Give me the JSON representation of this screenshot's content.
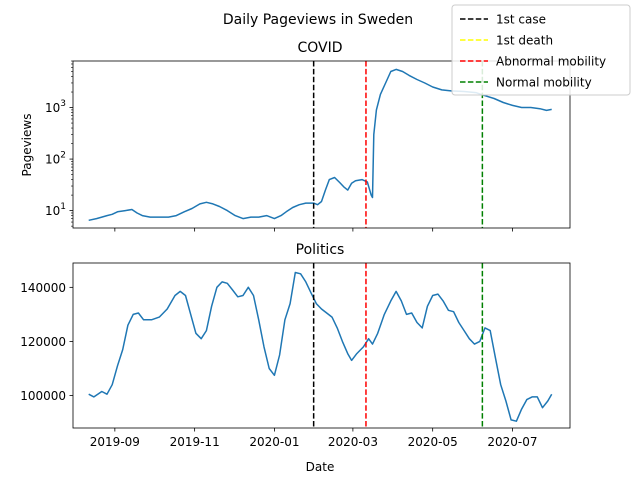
{
  "figure": {
    "title": "Daily Pageviews in Sweden",
    "xlabel": "Date"
  },
  "legend": {
    "placement": "top-right",
    "entries": [
      {
        "label": "1st case",
        "color": "#000000"
      },
      {
        "label": "1st death",
        "color": "#ffff00"
      },
      {
        "label": "Abnormal mobility",
        "color": "#ff0000"
      },
      {
        "label": "Normal mobility",
        "color": "#008000"
      }
    ]
  },
  "chart_data": [
    {
      "type": "line",
      "title": "COVID",
      "xlabel": "",
      "ylabel": "Pageviews",
      "yscale": "log",
      "xlim": [
        "2019-07-31",
        "2020-08-14"
      ],
      "ylim": [
        4.6,
        8000
      ],
      "x_ticks": [
        "2019-09-01",
        "2019-11-01",
        "2020-01-01",
        "2020-03-01",
        "2020-05-01",
        "2020-07-01"
      ],
      "y_ticks": [
        {
          "value": 10,
          "label": "10^1"
        },
        {
          "value": 100,
          "label": "10^2"
        },
        {
          "value": 1000,
          "label": "10^3"
        }
      ],
      "line_color": "#1f77b4",
      "events": [
        {
          "date": "2020-01-31",
          "color": "#000000"
        },
        {
          "date": "2020-03-11",
          "color": "#ff0000"
        },
        {
          "date": "2020-06-08",
          "color": "#008000"
        }
      ],
      "series": [
        {
          "points": [
            [
              "2019-08-12",
              6.5
            ],
            [
              "2019-08-18",
              7
            ],
            [
              "2019-08-22",
              7.5
            ],
            [
              "2019-08-26",
              8
            ],
            [
              "2019-08-30",
              8.5
            ],
            [
              "2019-09-03",
              9.5
            ],
            [
              "2019-09-09",
              10
            ],
            [
              "2019-09-14",
              10.5
            ],
            [
              "2019-09-18",
              9
            ],
            [
              "2019-09-22",
              8
            ],
            [
              "2019-09-28",
              7.5
            ],
            [
              "2019-10-05",
              7.5
            ],
            [
              "2019-10-12",
              7.5
            ],
            [
              "2019-10-18",
              8
            ],
            [
              "2019-10-24",
              9.5
            ],
            [
              "2019-10-30",
              11
            ],
            [
              "2019-11-05",
              13.5
            ],
            [
              "2019-11-10",
              14.5
            ],
            [
              "2019-11-15",
              13.5
            ],
            [
              "2019-11-20",
              12
            ],
            [
              "2019-11-26",
              10
            ],
            [
              "2019-12-02",
              8
            ],
            [
              "2019-12-08",
              7
            ],
            [
              "2019-12-14",
              7.5
            ],
            [
              "2019-12-20",
              7.5
            ],
            [
              "2019-12-26",
              8
            ],
            [
              "2020-01-01",
              7
            ],
            [
              "2020-01-06",
              8
            ],
            [
              "2020-01-10",
              9.5
            ],
            [
              "2020-01-15",
              11.5
            ],
            [
              "2020-01-20",
              13
            ],
            [
              "2020-01-25",
              14
            ],
            [
              "2020-01-31",
              14
            ],
            [
              "2020-02-03",
              13
            ],
            [
              "2020-02-06",
              15
            ],
            [
              "2020-02-09",
              25
            ],
            [
              "2020-02-12",
              40
            ],
            [
              "2020-02-16",
              44
            ],
            [
              "2020-02-20",
              35
            ],
            [
              "2020-02-23",
              29
            ],
            [
              "2020-02-26",
              25
            ],
            [
              "2020-02-29",
              34
            ],
            [
              "2020-03-03",
              38
            ],
            [
              "2020-03-08",
              40
            ],
            [
              "2020-03-12",
              36
            ],
            [
              "2020-03-15",
              20
            ],
            [
              "2020-03-16",
              18
            ],
            [
              "2020-03-17",
              300
            ],
            [
              "2020-03-19",
              900
            ],
            [
              "2020-03-22",
              1800
            ],
            [
              "2020-03-26",
              3000
            ],
            [
              "2020-03-30",
              5000
            ],
            [
              "2020-04-03",
              5500
            ],
            [
              "2020-04-08",
              5000
            ],
            [
              "2020-04-13",
              4200
            ],
            [
              "2020-04-19",
              3500
            ],
            [
              "2020-04-25",
              3000
            ],
            [
              "2020-05-01",
              2500
            ],
            [
              "2020-05-08",
              2200
            ],
            [
              "2020-05-15",
              2100
            ],
            [
              "2020-05-25",
              2050
            ],
            [
              "2020-06-03",
              1950
            ],
            [
              "2020-06-10",
              1700
            ],
            [
              "2020-06-17",
              1500
            ],
            [
              "2020-06-24",
              1250
            ],
            [
              "2020-07-01",
              1100
            ],
            [
              "2020-07-08",
              1000
            ],
            [
              "2020-07-15",
              1000
            ],
            [
              "2020-07-22",
              950
            ],
            [
              "2020-07-27",
              880
            ],
            [
              "2020-07-31",
              920
            ]
          ]
        }
      ]
    },
    {
      "type": "line",
      "title": "Politics",
      "xlabel": "Date",
      "ylabel": "",
      "yscale": "linear",
      "xlim": [
        "2019-07-31",
        "2020-08-14"
      ],
      "ylim": [
        88000,
        149000
      ],
      "x_ticks": [
        "2019-09-01",
        "2019-11-01",
        "2020-01-01",
        "2020-03-01",
        "2020-05-01",
        "2020-07-01"
      ],
      "x_tick_labels": [
        "2019-09",
        "2019-11",
        "2020-01",
        "2020-03",
        "2020-05",
        "2020-07"
      ],
      "y_ticks": [
        {
          "value": 100000,
          "label": "100000"
        },
        {
          "value": 120000,
          "label": "120000"
        },
        {
          "value": 140000,
          "label": "140000"
        }
      ],
      "line_color": "#1f77b4",
      "events": [
        {
          "date": "2020-01-31",
          "color": "#000000"
        },
        {
          "date": "2020-03-11",
          "color": "#ff0000"
        },
        {
          "date": "2020-06-08",
          "color": "#008000"
        }
      ],
      "series": [
        {
          "points": [
            [
              "2019-08-12",
              100500
            ],
            [
              "2019-08-16",
              99500
            ],
            [
              "2019-08-22",
              101500
            ],
            [
              "2019-08-26",
              100500
            ],
            [
              "2019-08-30",
              104000
            ],
            [
              "2019-09-03",
              111000
            ],
            [
              "2019-09-07",
              117000
            ],
            [
              "2019-09-11",
              126000
            ],
            [
              "2019-09-15",
              130000
            ],
            [
              "2019-09-19",
              130500
            ],
            [
              "2019-09-23",
              128000
            ],
            [
              "2019-09-29",
              128000
            ],
            [
              "2019-10-05",
              129000
            ],
            [
              "2019-10-11",
              132000
            ],
            [
              "2019-10-17",
              137000
            ],
            [
              "2019-10-21",
              138500
            ],
            [
              "2019-10-25",
              137000
            ],
            [
              "2019-10-29",
              130000
            ],
            [
              "2019-11-02",
              123000
            ],
            [
              "2019-11-06",
              121000
            ],
            [
              "2019-11-10",
              124000
            ],
            [
              "2019-11-14",
              133000
            ],
            [
              "2019-11-18",
              140000
            ],
            [
              "2019-11-22",
              142000
            ],
            [
              "2019-11-26",
              141500
            ],
            [
              "2019-11-30",
              139000
            ],
            [
              "2019-12-04",
              136500
            ],
            [
              "2019-12-08",
              137000
            ],
            [
              "2019-12-12",
              140000
            ],
            [
              "2019-12-16",
              137000
            ],
            [
              "2019-12-20",
              128000
            ],
            [
              "2019-12-24",
              118000
            ],
            [
              "2019-12-28",
              110000
            ],
            [
              "2020-01-01",
              107500
            ],
            [
              "2020-01-05",
              115000
            ],
            [
              "2020-01-09",
              128000
            ],
            [
              "2020-01-13",
              134000
            ],
            [
              "2020-01-17",
              145500
            ],
            [
              "2020-01-21",
              145000
            ],
            [
              "2020-01-25",
              142000
            ],
            [
              "2020-01-29",
              138000
            ],
            [
              "2020-02-02",
              134000
            ],
            [
              "2020-02-06",
              132000
            ],
            [
              "2020-02-10",
              130500
            ],
            [
              "2020-02-14",
              129000
            ],
            [
              "2020-02-18",
              125000
            ],
            [
              "2020-02-22",
              120000
            ],
            [
              "2020-02-26",
              115500
            ],
            [
              "2020-02-29",
              113000
            ],
            [
              "2020-03-04",
              115500
            ],
            [
              "2020-03-09",
              118000
            ],
            [
              "2020-03-13",
              121000
            ],
            [
              "2020-03-16",
              119000
            ],
            [
              "2020-03-20",
              123000
            ],
            [
              "2020-03-25",
              130000
            ],
            [
              "2020-03-30",
              135000
            ],
            [
              "2020-04-03",
              138500
            ],
            [
              "2020-04-07",
              135000
            ],
            [
              "2020-04-11",
              130000
            ],
            [
              "2020-04-15",
              130500
            ],
            [
              "2020-04-19",
              127000
            ],
            [
              "2020-04-23",
              125000
            ],
            [
              "2020-04-27",
              133000
            ],
            [
              "2020-05-01",
              137000
            ],
            [
              "2020-05-05",
              137500
            ],
            [
              "2020-05-09",
              135000
            ],
            [
              "2020-05-13",
              131500
            ],
            [
              "2020-05-17",
              131000
            ],
            [
              "2020-05-21",
              127000
            ],
            [
              "2020-05-25",
              124000
            ],
            [
              "2020-05-29",
              121000
            ],
            [
              "2020-06-02",
              119000
            ],
            [
              "2020-06-06",
              120000
            ],
            [
              "2020-06-10",
              125000
            ],
            [
              "2020-06-14",
              124000
            ],
            [
              "2020-06-18",
              114000
            ],
            [
              "2020-06-22",
              104000
            ],
            [
              "2020-06-26",
              98000
            ],
            [
              "2020-06-30",
              91000
            ],
            [
              "2020-07-04",
              90500
            ],
            [
              "2020-07-08",
              95000
            ],
            [
              "2020-07-12",
              98500
            ],
            [
              "2020-07-16",
              99500
            ],
            [
              "2020-07-20",
              99500
            ],
            [
              "2020-07-24",
              95500
            ],
            [
              "2020-07-28",
              98000
            ],
            [
              "2020-07-31",
              100500
            ]
          ]
        }
      ]
    }
  ]
}
